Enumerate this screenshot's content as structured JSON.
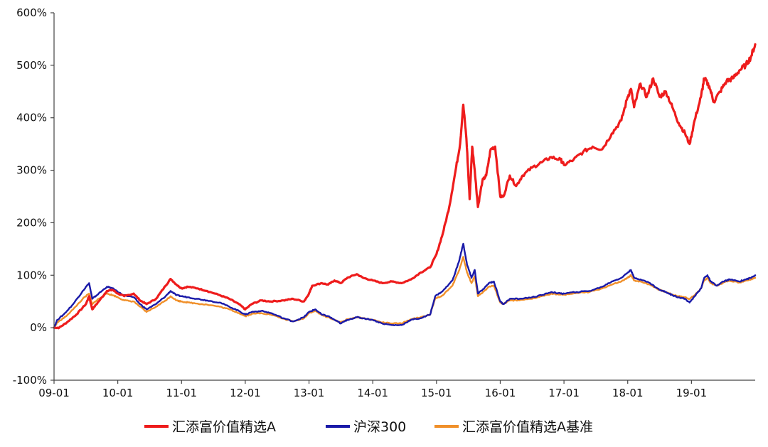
{
  "chart_data": {
    "type": "line",
    "x_ticks": [
      "09-01",
      "10-01",
      "11-01",
      "12-01",
      "13-01",
      "14-01",
      "15-01",
      "16-01",
      "17-01",
      "18-01",
      "19-01"
    ],
    "y_ticks": [
      "600%",
      "500%",
      "400%",
      "300%",
      "200%",
      "100%",
      "0%",
      "-100%"
    ],
    "ylim": [
      -100,
      600
    ],
    "xlim": [
      2009.0,
      2020.0
    ],
    "grid": false,
    "legend_position": "bottom",
    "series": [
      {
        "name": "汇添富价值精选A",
        "color": "#ee1c1c",
        "points": [
          [
            2009.0,
            0
          ],
          [
            2009.08,
            0
          ],
          [
            2009.2,
            10
          ],
          [
            2009.35,
            25
          ],
          [
            2009.5,
            45
          ],
          [
            2009.55,
            60
          ],
          [
            2009.6,
            35
          ],
          [
            2009.7,
            50
          ],
          [
            2009.83,
            70
          ],
          [
            2009.92,
            72
          ],
          [
            2010.0,
            65
          ],
          [
            2010.1,
            60
          ],
          [
            2010.25,
            65
          ],
          [
            2010.35,
            52
          ],
          [
            2010.45,
            45
          ],
          [
            2010.6,
            55
          ],
          [
            2010.75,
            80
          ],
          [
            2010.83,
            93
          ],
          [
            2010.92,
            82
          ],
          [
            2011.0,
            75
          ],
          [
            2011.1,
            78
          ],
          [
            2011.25,
            75
          ],
          [
            2011.4,
            70
          ],
          [
            2011.6,
            62
          ],
          [
            2011.75,
            55
          ],
          [
            2011.9,
            45
          ],
          [
            2012.0,
            35
          ],
          [
            2012.1,
            45
          ],
          [
            2012.25,
            52
          ],
          [
            2012.4,
            50
          ],
          [
            2012.6,
            52
          ],
          [
            2012.75,
            55
          ],
          [
            2012.92,
            50
          ],
          [
            2013.0,
            65
          ],
          [
            2013.05,
            80
          ],
          [
            2013.2,
            85
          ],
          [
            2013.3,
            82
          ],
          [
            2013.4,
            90
          ],
          [
            2013.5,
            85
          ],
          [
            2013.6,
            95
          ],
          [
            2013.75,
            102
          ],
          [
            2013.85,
            95
          ],
          [
            2014.0,
            90
          ],
          [
            2014.15,
            85
          ],
          [
            2014.3,
            88
          ],
          [
            2014.45,
            85
          ],
          [
            2014.6,
            92
          ],
          [
            2014.75,
            105
          ],
          [
            2014.9,
            115
          ],
          [
            2015.0,
            140
          ],
          [
            2015.1,
            180
          ],
          [
            2015.2,
            230
          ],
          [
            2015.3,
            300
          ],
          [
            2015.37,
            350
          ],
          [
            2015.42,
            425
          ],
          [
            2015.47,
            360
          ],
          [
            2015.52,
            245
          ],
          [
            2015.56,
            345
          ],
          [
            2015.6,
            300
          ],
          [
            2015.65,
            230
          ],
          [
            2015.72,
            280
          ],
          [
            2015.78,
            290
          ],
          [
            2015.85,
            340
          ],
          [
            2015.92,
            345
          ],
          [
            2016.0,
            250
          ],
          [
            2016.05,
            250
          ],
          [
            2016.15,
            290
          ],
          [
            2016.25,
            270
          ],
          [
            2016.35,
            290
          ],
          [
            2016.5,
            305
          ],
          [
            2016.65,
            315
          ],
          [
            2016.8,
            325
          ],
          [
            2016.95,
            320
          ],
          [
            2017.0,
            310
          ],
          [
            2017.15,
            320
          ],
          [
            2017.3,
            335
          ],
          [
            2017.45,
            345
          ],
          [
            2017.6,
            340
          ],
          [
            2017.75,
            370
          ],
          [
            2017.9,
            395
          ],
          [
            2018.0,
            440
          ],
          [
            2018.05,
            455
          ],
          [
            2018.1,
            420
          ],
          [
            2018.2,
            465
          ],
          [
            2018.3,
            440
          ],
          [
            2018.4,
            475
          ],
          [
            2018.5,
            440
          ],
          [
            2018.6,
            450
          ],
          [
            2018.7,
            420
          ],
          [
            2018.8,
            390
          ],
          [
            2018.9,
            370
          ],
          [
            2018.97,
            350
          ],
          [
            2019.05,
            395
          ],
          [
            2019.15,
            440
          ],
          [
            2019.2,
            475
          ],
          [
            2019.28,
            460
          ],
          [
            2019.35,
            430
          ],
          [
            2019.45,
            450
          ],
          [
            2019.55,
            470
          ],
          [
            2019.65,
            475
          ],
          [
            2019.75,
            490
          ],
          [
            2019.85,
            500
          ],
          [
            2019.93,
            515
          ],
          [
            2020.0,
            540
          ]
        ]
      },
      {
        "name": "沪深300",
        "color": "#1a1aa8",
        "points": [
          [
            2009.0,
            0
          ],
          [
            2009.05,
            15
          ],
          [
            2009.15,
            25
          ],
          [
            2009.3,
            45
          ],
          [
            2009.45,
            70
          ],
          [
            2009.55,
            85
          ],
          [
            2009.6,
            55
          ],
          [
            2009.7,
            65
          ],
          [
            2009.83,
            78
          ],
          [
            2009.92,
            75
          ],
          [
            2010.0,
            68
          ],
          [
            2010.1,
            62
          ],
          [
            2010.25,
            58
          ],
          [
            2010.35,
            45
          ],
          [
            2010.45,
            35
          ],
          [
            2010.6,
            45
          ],
          [
            2010.75,
            60
          ],
          [
            2010.83,
            70
          ],
          [
            2010.92,
            62
          ],
          [
            2011.0,
            60
          ],
          [
            2011.1,
            58
          ],
          [
            2011.25,
            55
          ],
          [
            2011.4,
            52
          ],
          [
            2011.6,
            48
          ],
          [
            2011.75,
            40
          ],
          [
            2011.9,
            32
          ],
          [
            2012.0,
            25
          ],
          [
            2012.1,
            30
          ],
          [
            2012.25,
            32
          ],
          [
            2012.4,
            28
          ],
          [
            2012.6,
            18
          ],
          [
            2012.75,
            12
          ],
          [
            2012.92,
            20
          ],
          [
            2013.0,
            30
          ],
          [
            2013.1,
            35
          ],
          [
            2013.2,
            25
          ],
          [
            2013.3,
            22
          ],
          [
            2013.4,
            15
          ],
          [
            2013.5,
            8
          ],
          [
            2013.6,
            15
          ],
          [
            2013.75,
            20
          ],
          [
            2013.85,
            18
          ],
          [
            2014.0,
            15
          ],
          [
            2014.15,
            8
          ],
          [
            2014.3,
            5
          ],
          [
            2014.45,
            5
          ],
          [
            2014.6,
            15
          ],
          [
            2014.75,
            18
          ],
          [
            2014.9,
            25
          ],
          [
            2014.98,
            60
          ],
          [
            2015.1,
            70
          ],
          [
            2015.25,
            90
          ],
          [
            2015.35,
            125
          ],
          [
            2015.42,
            160
          ],
          [
            2015.48,
            120
          ],
          [
            2015.55,
            95
          ],
          [
            2015.6,
            110
          ],
          [
            2015.65,
            65
          ],
          [
            2015.75,
            75
          ],
          [
            2015.82,
            85
          ],
          [
            2015.9,
            88
          ],
          [
            2016.0,
            50
          ],
          [
            2016.05,
            45
          ],
          [
            2016.15,
            55
          ],
          [
            2016.3,
            55
          ],
          [
            2016.5,
            58
          ],
          [
            2016.65,
            62
          ],
          [
            2016.8,
            68
          ],
          [
            2016.95,
            65
          ],
          [
            2017.0,
            65
          ],
          [
            2017.2,
            68
          ],
          [
            2017.4,
            70
          ],
          [
            2017.6,
            78
          ],
          [
            2017.75,
            88
          ],
          [
            2017.9,
            95
          ],
          [
            2018.0,
            105
          ],
          [
            2018.05,
            110
          ],
          [
            2018.1,
            95
          ],
          [
            2018.2,
            92
          ],
          [
            2018.35,
            85
          ],
          [
            2018.5,
            72
          ],
          [
            2018.6,
            68
          ],
          [
            2018.7,
            62
          ],
          [
            2018.8,
            58
          ],
          [
            2018.9,
            55
          ],
          [
            2018.97,
            48
          ],
          [
            2019.05,
            60
          ],
          [
            2019.15,
            75
          ],
          [
            2019.2,
            95
          ],
          [
            2019.25,
            100
          ],
          [
            2019.3,
            88
          ],
          [
            2019.4,
            80
          ],
          [
            2019.5,
            88
          ],
          [
            2019.6,
            92
          ],
          [
            2019.75,
            88
          ],
          [
            2019.85,
            92
          ],
          [
            2019.93,
            95
          ],
          [
            2020.0,
            100
          ]
        ]
      },
      {
        "name": "汇添富价值精选A基准",
        "color": "#f0902a",
        "points": [
          [
            2009.0,
            0
          ],
          [
            2009.05,
            10
          ],
          [
            2009.15,
            18
          ],
          [
            2009.3,
            35
          ],
          [
            2009.45,
            55
          ],
          [
            2009.55,
            65
          ],
          [
            2009.6,
            45
          ],
          [
            2009.7,
            55
          ],
          [
            2009.83,
            65
          ],
          [
            2009.92,
            62
          ],
          [
            2010.0,
            58
          ],
          [
            2010.1,
            52
          ],
          [
            2010.25,
            50
          ],
          [
            2010.35,
            40
          ],
          [
            2010.45,
            30
          ],
          [
            2010.6,
            40
          ],
          [
            2010.75,
            52
          ],
          [
            2010.83,
            60
          ],
          [
            2010.92,
            52
          ],
          [
            2011.0,
            50
          ],
          [
            2011.1,
            48
          ],
          [
            2011.25,
            46
          ],
          [
            2011.4,
            44
          ],
          [
            2011.6,
            40
          ],
          [
            2011.75,
            35
          ],
          [
            2011.9,
            28
          ],
          [
            2012.0,
            22
          ],
          [
            2012.1,
            26
          ],
          [
            2012.25,
            28
          ],
          [
            2012.4,
            25
          ],
          [
            2012.6,
            17
          ],
          [
            2012.75,
            12
          ],
          [
            2012.92,
            18
          ],
          [
            2013.0,
            28
          ],
          [
            2013.1,
            32
          ],
          [
            2013.2,
            24
          ],
          [
            2013.3,
            20
          ],
          [
            2013.4,
            15
          ],
          [
            2013.5,
            10
          ],
          [
            2013.6,
            16
          ],
          [
            2013.75,
            20
          ],
          [
            2013.85,
            18
          ],
          [
            2014.0,
            15
          ],
          [
            2014.15,
            10
          ],
          [
            2014.3,
            8
          ],
          [
            2014.45,
            8
          ],
          [
            2014.6,
            16
          ],
          [
            2014.75,
            20
          ],
          [
            2014.9,
            25
          ],
          [
            2014.98,
            55
          ],
          [
            2015.1,
            62
          ],
          [
            2015.25,
            80
          ],
          [
            2015.35,
            108
          ],
          [
            2015.42,
            135
          ],
          [
            2015.48,
            105
          ],
          [
            2015.55,
            85
          ],
          [
            2015.6,
            98
          ],
          [
            2015.65,
            60
          ],
          [
            2015.75,
            70
          ],
          [
            2015.82,
            78
          ],
          [
            2015.9,
            80
          ],
          [
            2016.0,
            48
          ],
          [
            2016.05,
            45
          ],
          [
            2016.15,
            52
          ],
          [
            2016.3,
            52
          ],
          [
            2016.5,
            55
          ],
          [
            2016.65,
            60
          ],
          [
            2016.8,
            65
          ],
          [
            2016.95,
            63
          ],
          [
            2017.0,
            63
          ],
          [
            2017.2,
            66
          ],
          [
            2017.4,
            68
          ],
          [
            2017.6,
            75
          ],
          [
            2017.75,
            82
          ],
          [
            2017.9,
            88
          ],
          [
            2018.0,
            95
          ],
          [
            2018.05,
            100
          ],
          [
            2018.1,
            90
          ],
          [
            2018.2,
            88
          ],
          [
            2018.35,
            82
          ],
          [
            2018.5,
            72
          ],
          [
            2018.6,
            68
          ],
          [
            2018.7,
            63
          ],
          [
            2018.8,
            60
          ],
          [
            2018.9,
            58
          ],
          [
            2018.97,
            55
          ],
          [
            2019.05,
            62
          ],
          [
            2019.15,
            75
          ],
          [
            2019.2,
            90
          ],
          [
            2019.25,
            95
          ],
          [
            2019.3,
            85
          ],
          [
            2019.4,
            80
          ],
          [
            2019.5,
            86
          ],
          [
            2019.6,
            90
          ],
          [
            2019.75,
            86
          ],
          [
            2019.85,
            90
          ],
          [
            2019.93,
            92
          ],
          [
            2020.0,
            95
          ]
        ]
      }
    ]
  }
}
